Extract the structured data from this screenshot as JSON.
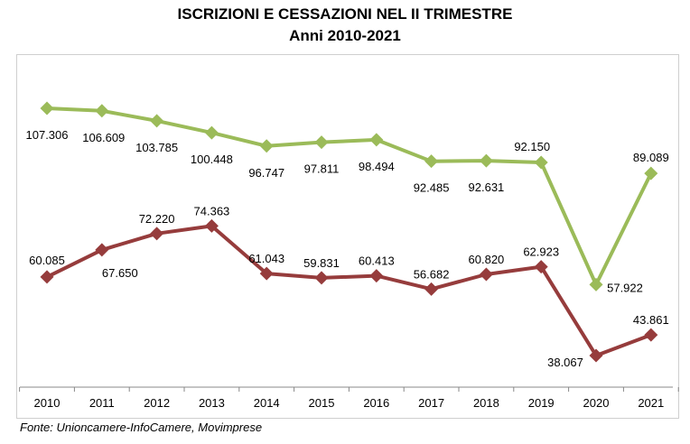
{
  "title": "ISCRIZIONI E CESSAZIONI NEL II TRIMESTRE",
  "subtitle": "Anni 2010-2021",
  "source": "Fonte: Unioncamere-InfoCamere, Movimprese",
  "chart_data": {
    "type": "line",
    "title": "ISCRIZIONI E CESSAZIONI NEL II TRIMESTRE",
    "subtitle": "Anni 2010-2021",
    "xlabel": "",
    "ylabel": "",
    "x": [
      "2010",
      "2011",
      "2012",
      "2013",
      "2014",
      "2015",
      "2016",
      "2017",
      "2018",
      "2019",
      "2020",
      "2021"
    ],
    "series": [
      {
        "color": "#9bbb59",
        "values": [
          107306,
          106609,
          103785,
          100448,
          96747,
          97811,
          98494,
          92485,
          92631,
          92150,
          57922,
          89089
        ],
        "labels": [
          "107.306",
          "106.609",
          "103.785",
          "100.448",
          "96.747",
          "97.811",
          "98.494",
          "92.485",
          "92.631",
          "92.150",
          "57.922",
          "89.089"
        ]
      },
      {
        "color": "#963c3c",
        "values": [
          60085,
          67650,
          72220,
          74363,
          61043,
          59831,
          60413,
          56682,
          60820,
          62923,
          38067,
          43861
        ],
        "labels": [
          "60.085",
          "67.650",
          "72.220",
          "74.363",
          "61.043",
          "59.831",
          "60.413",
          "56.682",
          "60.820",
          "62.923",
          "38.067",
          "43.861"
        ]
      }
    ],
    "grid": false,
    "legend": "none"
  }
}
